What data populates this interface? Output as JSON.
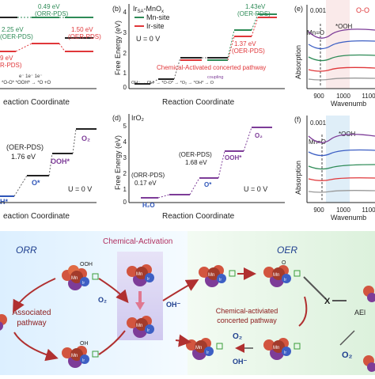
{
  "panel_a": {
    "labels": [
      "0.49 eV",
      "(ORR-PDS)",
      "2.25 eV",
      "(OER-PDS)",
      "1.50 eV",
      "(OER-PDS)",
      "9 eV",
      "R-PDS)"
    ],
    "path_text": "e⁻        1e⁻        1e⁻",
    "path_species": "*O-O*   *OOH*    → *O   +O",
    "xlabel": "eaction Coordinate"
  },
  "panel_b": {
    "letter": "(b)",
    "title": "Ir",
    "title_sub": "SA",
    "title_rest": "-MnO",
    "title_sub2": "x",
    "legend": [
      {
        "name": "Mn-site",
        "color": "#2e8b57"
      },
      {
        "name": "Ir-site",
        "color": "#e0373a"
      }
    ],
    "condition": "U = 0 V",
    "ylabel": "Free Energy (eV)",
    "yticks": [
      "4",
      "3",
      "2",
      "1",
      "0"
    ],
    "annot1_value": "1.43eV",
    "annot1_tag": "(OER-PDS)",
    "annot2_value": "1.37 eV",
    "annot2_tag": "(OER-PDS)",
    "pathway_label": "Chemical-Activated concerted pathway",
    "coupling": "coupling",
    "path_species": "OH⁻ → OH·   → *O-O*     → *O₂    → *OH*    → O",
    "xlabel": "Reaction Coordinate"
  },
  "panel_c": {
    "labels": [
      "O₂",
      "OOH*",
      "(OER-PDS)",
      "1.76 eV",
      "O*",
      "H*"
    ],
    "condition": "U = 0 V",
    "xlabel": "eaction Coordinate"
  },
  "panel_d": {
    "letter": "(d)",
    "title": "IrO₂",
    "ylabel": "Free Energy (eV)",
    "yticks": [
      "5",
      "4",
      "3",
      "2",
      "1",
      "0"
    ],
    "labels": [
      "(ORR-PDS)",
      "0.17 eV",
      "H₂O",
      "(OER-PDS)",
      "1.68 eV",
      "O*",
      "OOH*",
      "O₂"
    ],
    "condition": "U = 0 V",
    "xlabel": "Reaction Coordinate"
  },
  "panel_e": {
    "letter": "(e)",
    "scale": "0.001",
    "corner": "O-O",
    "peak1": "Mn=O",
    "peak2": "*OOH",
    "ylabel": "Absorption",
    "xticks": [
      "900",
      "1000",
      "1100"
    ],
    "xlabel": "Wavenumb",
    "ael": "AEl"
  },
  "panel_f": {
    "letter": "(f)",
    "scale": "0.001",
    "peak1": "Mn=O",
    "peak2": "*OOH",
    "ylabel": "Absorption",
    "xticks": [
      "900",
      "1000",
      "1100"
    ],
    "xlabel": "Wavenumb"
  },
  "scheme": {
    "orr": "ORR",
    "oer": "OER",
    "activation": "Chemical-Activation",
    "associated": "Associated",
    "associated2": "pathway",
    "concerted1": "Chemical-activiated",
    "concerted2": "concerted pathway",
    "o2_left": "O₂",
    "oh_mid": "OH⁻",
    "o2_bottom": "O₂",
    "oh_bottom": "OH⁻",
    "o2_right": "O₂",
    "x_mark": "X",
    "ael": "AEl",
    "mn": "Mn",
    "ir": "Ir",
    "ooh": "OOH",
    "oh": "OH",
    "o": "O"
  },
  "colors": {
    "green": "#2e8b57",
    "red": "#e0373a",
    "blue": "#2e55b8",
    "purple": "#7d3c98",
    "mn_red": "#c0392b",
    "ir_blue": "#3d5fc4"
  }
}
